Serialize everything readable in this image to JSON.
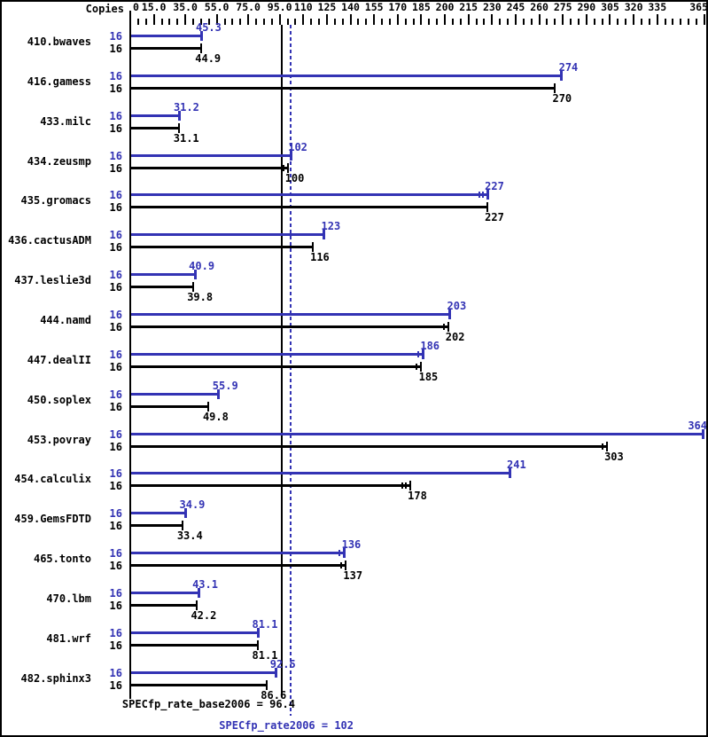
{
  "chart_data": {
    "type": "bar",
    "orientation": "horizontal",
    "copies_header": "Copies",
    "copies_per_row": "16",
    "xlim": [
      0,
      365
    ],
    "axis_minor_step": 5,
    "axis_major_ticks": [
      {
        "v": 0,
        "label": "0"
      },
      {
        "v": 15,
        "label": "15.0"
      },
      {
        "v": 35,
        "label": "35.0"
      },
      {
        "v": 55,
        "label": "55.0"
      },
      {
        "v": 75,
        "label": "75.0"
      },
      {
        "v": 95,
        "label": "95.0"
      },
      {
        "v": 110,
        "label": "110"
      },
      {
        "v": 125,
        "label": "125"
      },
      {
        "v": 140,
        "label": "140"
      },
      {
        "v": 155,
        "label": "155"
      },
      {
        "v": 170,
        "label": "170"
      },
      {
        "v": 185,
        "label": "185"
      },
      {
        "v": 200,
        "label": "200"
      },
      {
        "v": 215,
        "label": "215"
      },
      {
        "v": 230,
        "label": "230"
      },
      {
        "v": 245,
        "label": "245"
      },
      {
        "v": 260,
        "label": "260"
      },
      {
        "v": 275,
        "label": "275"
      },
      {
        "v": 290,
        "label": "290"
      },
      {
        "v": 305,
        "label": "305"
      },
      {
        "v": 320,
        "label": "320"
      },
      {
        "v": 335,
        "label": "335"
      },
      {
        "v": 365,
        "label": "365"
      }
    ],
    "categories": [
      "410.bwaves",
      "416.gamess",
      "433.milc",
      "434.zeusmp",
      "435.gromacs",
      "436.cactusADM",
      "437.leslie3d",
      "444.namd",
      "447.dealII",
      "450.soplex",
      "453.povray",
      "454.calculix",
      "459.GemsFDTD",
      "465.tonto",
      "470.lbm",
      "481.wrf",
      "482.sphinx3"
    ],
    "series": [
      {
        "name": "SPECfp_rate2006 (peak)",
        "color": "#3333b4",
        "values": [
          45.3,
          274,
          31.2,
          102,
          227,
          123,
          40.9,
          203,
          186,
          55.9,
          364,
          241,
          34.9,
          136,
          43.1,
          81.1,
          92.5
        ],
        "labels": [
          "45.3",
          "274",
          "31.2",
          "102",
          "227",
          "123",
          "40.9",
          "203",
          "186",
          "55.9",
          "364",
          "241",
          "34.9",
          "136",
          "43.1",
          "81.1",
          "92.5"
        ],
        "spread_marks": [
          0,
          0,
          0,
          0,
          2,
          0,
          0,
          0,
          1,
          0,
          0,
          0,
          0,
          1,
          0,
          0,
          0
        ]
      },
      {
        "name": "SPECfp_rate_base2006 (base)",
        "color": "#000000",
        "values": [
          44.9,
          270,
          31.1,
          100,
          227,
          116,
          39.8,
          202,
          185,
          49.8,
          303,
          178,
          33.4,
          137,
          42.2,
          81.1,
          86.6
        ],
        "labels": [
          "44.9",
          "270",
          "31.1",
          "100",
          "227",
          "116",
          "39.8",
          "202",
          "185",
          "49.8",
          "303",
          "178",
          "33.4",
          "137",
          "42.2",
          "81.1",
          "86.6"
        ],
        "spread_marks": [
          0,
          0,
          0,
          1,
          0,
          0,
          0,
          1,
          1,
          0,
          1,
          2,
          0,
          1,
          0,
          0,
          0
        ]
      }
    ],
    "reference_lines": [
      {
        "id": "base",
        "value": 96.4,
        "color": "#000000",
        "style": "solid",
        "caption": "SPECfp_rate_base2006 = 96.4"
      },
      {
        "id": "peak",
        "value": 102,
        "color": "#3333b4",
        "style": "dotted",
        "caption": "SPECfp_rate2006 = 102"
      }
    ]
  },
  "colors": {
    "peak": "#3333b4",
    "base": "#000000",
    "background": "#ffffff"
  }
}
